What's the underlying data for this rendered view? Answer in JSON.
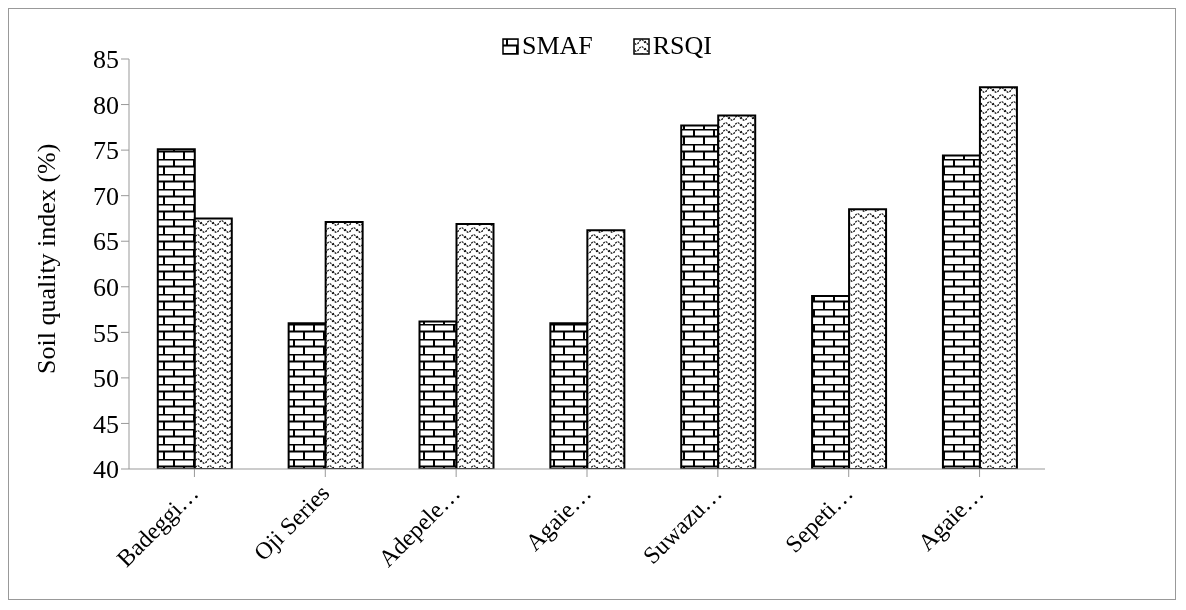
{
  "chart_data": {
    "type": "bar",
    "ylabel": "Soil quality index (%)",
    "categories": [
      "Badeggi…",
      "Oji Series",
      "Adepele…",
      "Agaie…",
      "Suwazu…",
      "Sepeti…",
      "Agaie…"
    ],
    "series": [
      {
        "name": "SMAF",
        "color": "#000000",
        "values": [
          75.1,
          56.0,
          56.2,
          56.0,
          77.7,
          59.0,
          74.4
        ]
      },
      {
        "name": "RSQI",
        "color": "#000000",
        "values": [
          67.5,
          67.1,
          66.9,
          66.2,
          78.8,
          68.5,
          81.9
        ]
      }
    ],
    "ylim": [
      40,
      85
    ],
    "yticks": [
      40,
      45,
      50,
      55,
      60,
      65,
      70,
      75,
      80,
      85
    ],
    "grid": false,
    "legend": "top"
  }
}
